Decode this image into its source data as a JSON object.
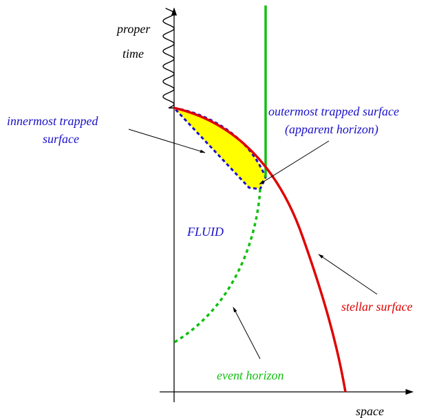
{
  "labels": {
    "proper": "proper",
    "time": "time",
    "space": "space",
    "innermost_line1": "innermost trapped",
    "innermost_line2": "surface",
    "outermost_line1": "outermost trapped surface",
    "outermost_line2": "(apparent horizon)",
    "fluid": "FLUID",
    "stellar_surface": "stellar surface",
    "event_horizon": "event horizon"
  },
  "colors": {
    "stellar_surface": "#e00000",
    "apparent_horizon": "#10c010",
    "event_horizon": "#10c010",
    "trapped_region_fill": "#ffff00",
    "trapped_region_border": "#1a10c8",
    "label_blue": "#1a10c8",
    "axes": "#000000"
  }
}
